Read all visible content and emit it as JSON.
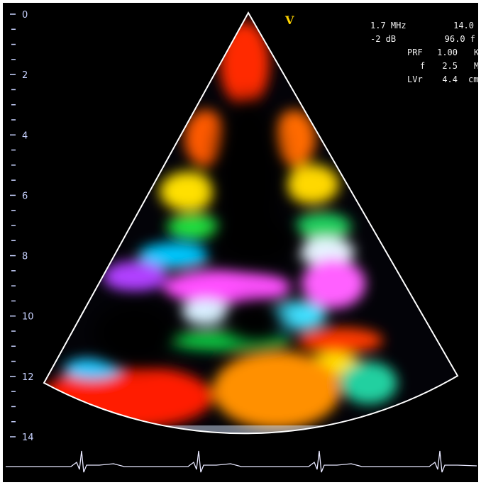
{
  "depth_scale": {
    "labels": [
      0,
      2,
      4,
      6,
      8,
      10,
      12,
      14
    ]
  },
  "marker": "V",
  "settings": [
    [
      "1.7 MHz",
      "14.0"
    ],
    [
      "-2 dB",
      "96.0 f"
    ],
    [
      "PRF",
      "1.00",
      "K"
    ],
    [
      "f",
      "2.5",
      "M"
    ],
    [
      "LVr",
      "4.4",
      "cm"
    ]
  ]
}
